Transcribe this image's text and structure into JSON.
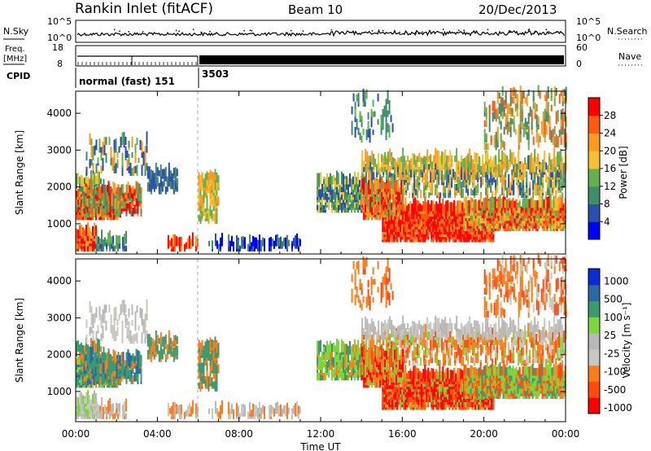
{
  "header": {
    "station": "Rankin Inlet (fitACF)",
    "beam": "Beam 10",
    "date": "20/Dec/2013"
  },
  "noise_panel": {
    "left_label": "N.Sky",
    "right_label": "N.Search",
    "left_ticks": [
      "10^5",
      "10^0"
    ],
    "right_ticks": [
      "10^5",
      "10^0"
    ]
  },
  "freq_panel": {
    "left_label_line1": "Freq.",
    "left_label_line2": "[MHz]",
    "right_label": "Nave",
    "left_ticks": [
      "18",
      "8"
    ],
    "right_ticks": [
      "60",
      "0"
    ]
  },
  "cpid": {
    "label": "CPID",
    "modes": [
      {
        "text": "normal (fast) 151",
        "start_hour": 0
      },
      {
        "text": "3503",
        "start_hour": 6
      }
    ]
  },
  "x_axis": {
    "label": "Time UT",
    "ticks": [
      "00:00",
      "04:00",
      "08:00",
      "12:00",
      "16:00",
      "20:00",
      "00:00"
    ]
  },
  "colors": {
    "power_scale": [
      "#0000ff",
      "#2c4fae",
      "#3f8c6a",
      "#63b14e",
      "#f2c233",
      "#ff9a21",
      "#ff5a12",
      "#ff0000"
    ],
    "velocity_scale": [
      "#ff0000",
      "#ff4a10",
      "#ff7c18",
      "#c8c8c0",
      "#b8b8b8",
      "#7dd63d",
      "#3c9a6e",
      "#2a6aa4",
      "#0b2bd5"
    ]
  },
  "chart_data": [
    {
      "type": "heatmap",
      "title": "",
      "xlabel": "Time UT",
      "ylabel": "Slant Range [km]",
      "xlim": [
        0,
        24
      ],
      "ylim": [
        180,
        4600
      ],
      "yticks": [
        "1000",
        "2000",
        "3000",
        "4000"
      ],
      "colorbar": {
        "label": "Power [dB]",
        "ticks": [
          "4",
          "8",
          "12",
          "16",
          "20",
          "24",
          "28"
        ]
      }
    },
    {
      "type": "heatmap",
      "title": "",
      "xlabel": "Time UT",
      "ylabel": "Slant Range [km]",
      "xlim": [
        0,
        24
      ],
      "ylim": [
        180,
        4600
      ],
      "yticks": [
        "1000",
        "2000",
        "3000",
        "4000"
      ],
      "colorbar": {
        "label": "Velocity [m s⁻¹]",
        "ticks": [
          "1000",
          "500",
          "100",
          "25",
          "-25",
          "-100",
          "-500",
          "-1000"
        ]
      }
    }
  ]
}
